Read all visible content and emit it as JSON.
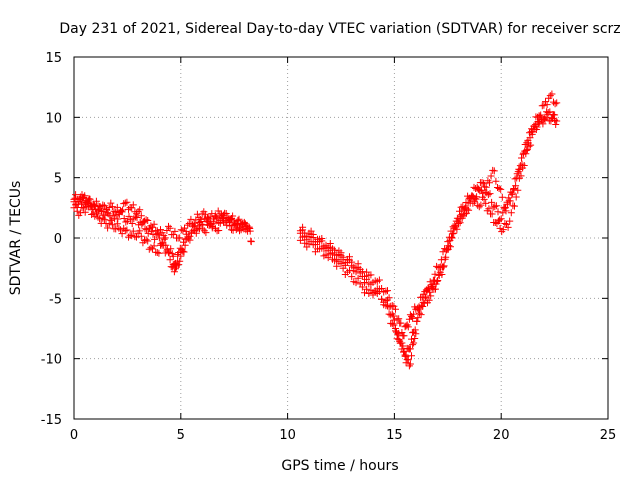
{
  "chart_data": {
    "type": "scatter",
    "title": "Day 231 of 2021, Sidereal Day-to-day VTEC variation (SDTVAR) for receiver scrz",
    "xlabel": "GPS time / hours",
    "ylabel": "SDTVAR / TECUs",
    "xlim": [
      0,
      25
    ],
    "ylim": [
      -15,
      15
    ],
    "x_ticks": [
      0,
      5,
      10,
      15,
      20,
      25
    ],
    "y_ticks": [
      -15,
      -10,
      -5,
      0,
      5,
      10,
      15
    ],
    "x_tick_labels": [
      "0",
      "5",
      "10",
      "15",
      "20",
      "25"
    ],
    "y_tick_labels": [
      "-15",
      "-10",
      "-5",
      "0",
      "5",
      "10",
      "15"
    ],
    "grid": true,
    "marker": "+",
    "color": "#ff0000",
    "series": [
      {
        "name": "SDTVAR",
        "segments": [
          {
            "x": [
              0.0,
              0.2,
              0.4,
              0.6,
              0.8,
              1.0,
              1.3,
              1.6,
              1.9,
              2.2,
              2.5,
              2.8,
              3.1,
              3.4,
              3.7,
              4.0,
              4.3,
              4.6,
              4.8,
              5.0,
              5.2,
              5.5,
              5.8,
              6.1,
              6.4,
              6.7,
              7.0,
              7.3,
              7.6,
              7.9,
              8.2,
              8.3
            ],
            "y": [
              3.0,
              2.8,
              3.3,
              3.1,
              2.7,
              2.4,
              2.2,
              2.0,
              1.6,
              2.2,
              1.4,
              1.6,
              1.3,
              0.7,
              0.3,
              0.0,
              -0.6,
              -1.3,
              -2.4,
              -1.5,
              -0.6,
              0.4,
              1.0,
              0.6,
              1.2,
              1.6,
              1.3,
              1.5,
              1.2,
              0.9,
              0.9,
              -0.3
            ]
          },
          {
            "x": [
              0.0,
              0.3,
              0.6,
              0.9,
              1.2,
              1.5,
              1.8,
              2.1,
              2.4,
              2.7,
              3.0,
              3.3,
              3.6,
              3.9,
              4.2,
              4.5,
              4.7,
              4.9,
              5.2,
              5.5,
              5.8,
              6.1,
              6.4,
              6.7,
              7.0,
              7.3,
              7.6,
              7.9,
              8.2
            ],
            "y": [
              2.5,
              2.1,
              2.6,
              2.0,
              1.6,
              1.2,
              1.1,
              0.8,
              0.6,
              0.2,
              0.4,
              -0.2,
              -0.8,
              -1.2,
              -0.6,
              -1.8,
              -2.8,
              -1.2,
              -0.1,
              0.5,
              0.8,
              1.6,
              1.1,
              0.6,
              1.9,
              1.0,
              0.7,
              1.2,
              0.8
            ]
          },
          {
            "x": [
              0.0,
              0.3,
              0.6,
              0.9,
              1.2,
              1.5,
              1.8,
              2.1,
              2.4,
              2.7,
              3.0,
              3.3,
              3.6,
              3.9,
              4.2,
              4.5,
              4.8,
              5.1,
              5.4,
              5.7,
              6.0,
              6.3,
              6.6,
              6.9,
              7.2,
              7.5,
              7.8,
              8.1
            ],
            "y": [
              3.2,
              3.4,
              3.0,
              2.8,
              2.6,
              2.4,
              2.6,
              2.1,
              2.9,
              2.5,
              2.2,
              1.4,
              1.0,
              0.6,
              0.2,
              0.8,
              0.0,
              0.6,
              1.2,
              1.5,
              2.0,
              1.6,
              1.8,
              2.0,
              1.7,
              1.4,
              1.2,
              1.0
            ]
          },
          {
            "x": [
              10.6,
              11.0,
              11.4,
              11.8,
              12.2,
              12.6,
              13.0,
              13.4,
              13.8,
              14.2,
              14.6,
              14.9,
              15.1,
              15.3,
              15.5,
              15.7,
              15.9,
              16.1,
              16.4,
              16.7,
              17.0,
              17.3,
              17.6,
              17.9,
              18.2,
              18.5,
              18.8,
              19.1,
              19.4,
              19.7,
              20.0,
              20.3,
              20.6,
              20.9,
              21.2,
              21.5,
              21.8,
              22.1,
              22.4,
              22.6
            ],
            "y": [
              0.4,
              0.1,
              -0.3,
              -0.8,
              -1.4,
              -1.8,
              -2.3,
              -2.9,
              -3.8,
              -4.6,
              -5.2,
              -6.3,
              -7.8,
              -8.7,
              -9.8,
              -10.6,
              -8.7,
              -6.6,
              -5.4,
              -4.8,
              -3.6,
              -2.4,
              -0.2,
              1.4,
              2.6,
              3.3,
              4.1,
              4.6,
              3.6,
              2.6,
              1.6,
              2.8,
              4.1,
              6.0,
              7.9,
              9.0,
              9.6,
              10.0,
              9.9,
              9.7
            ]
          },
          {
            "x": [
              10.6,
              11.0,
              11.4,
              11.8,
              12.2,
              12.6,
              13.0,
              13.4,
              13.8,
              14.2,
              14.6,
              14.9,
              15.2,
              15.4,
              15.6,
              15.8,
              16.0,
              16.3,
              16.6,
              16.9,
              17.2,
              17.5,
              17.8,
              18.1,
              18.4,
              18.7,
              19.0,
              19.3,
              19.6,
              19.9,
              20.2,
              20.5,
              20.8,
              21.1,
              21.4,
              21.7,
              22.0,
              22.3,
              22.6
            ],
            "y": [
              0.6,
              0.4,
              -0.1,
              -0.6,
              -1.0,
              -1.6,
              -2.0,
              -2.6,
              -3.1,
              -3.6,
              -4.4,
              -5.6,
              -6.7,
              -8.1,
              -7.2,
              -6.5,
              -5.9,
              -4.9,
              -4.2,
              -3.0,
              -1.8,
              -0.3,
              0.8,
              1.8,
              2.4,
              3.4,
              3.9,
              4.2,
              5.6,
              4.1,
              2.5,
              3.6,
              5.5,
              7.2,
              8.8,
              10.0,
              11.0,
              11.8,
              11.2
            ]
          },
          {
            "x": [
              10.6,
              11.0,
              11.4,
              11.8,
              12.2,
              12.6,
              13.0,
              13.4,
              13.8,
              14.2,
              14.6,
              14.9,
              15.2,
              15.5,
              15.7,
              15.9,
              16.2,
              16.5,
              16.8,
              17.1,
              17.4,
              17.7,
              18.0,
              18.3,
              18.6,
              18.9,
              19.2,
              19.5,
              19.8,
              20.1,
              20.4,
              20.7,
              21.0,
              21.3,
              21.6,
              21.9,
              22.2,
              22.5
            ],
            "y": [
              -0.2,
              -0.5,
              -0.9,
              -1.4,
              -1.9,
              -2.5,
              -3.2,
              -3.8,
              -4.6,
              -4.2,
              -5.6,
              -7.1,
              -8.4,
              -9.7,
              -9.2,
              -7.8,
              -5.8,
              -4.3,
              -4.0,
              -3.1,
              -1.6,
              0.0,
              1.2,
              2.0,
              3.4,
              2.7,
              3.2,
              2.0,
              1.2,
              0.7,
              1.4,
              3.4,
              5.8,
              7.6,
              9.4,
              9.8,
              10.4,
              10.2
            ]
          }
        ]
      }
    ]
  }
}
